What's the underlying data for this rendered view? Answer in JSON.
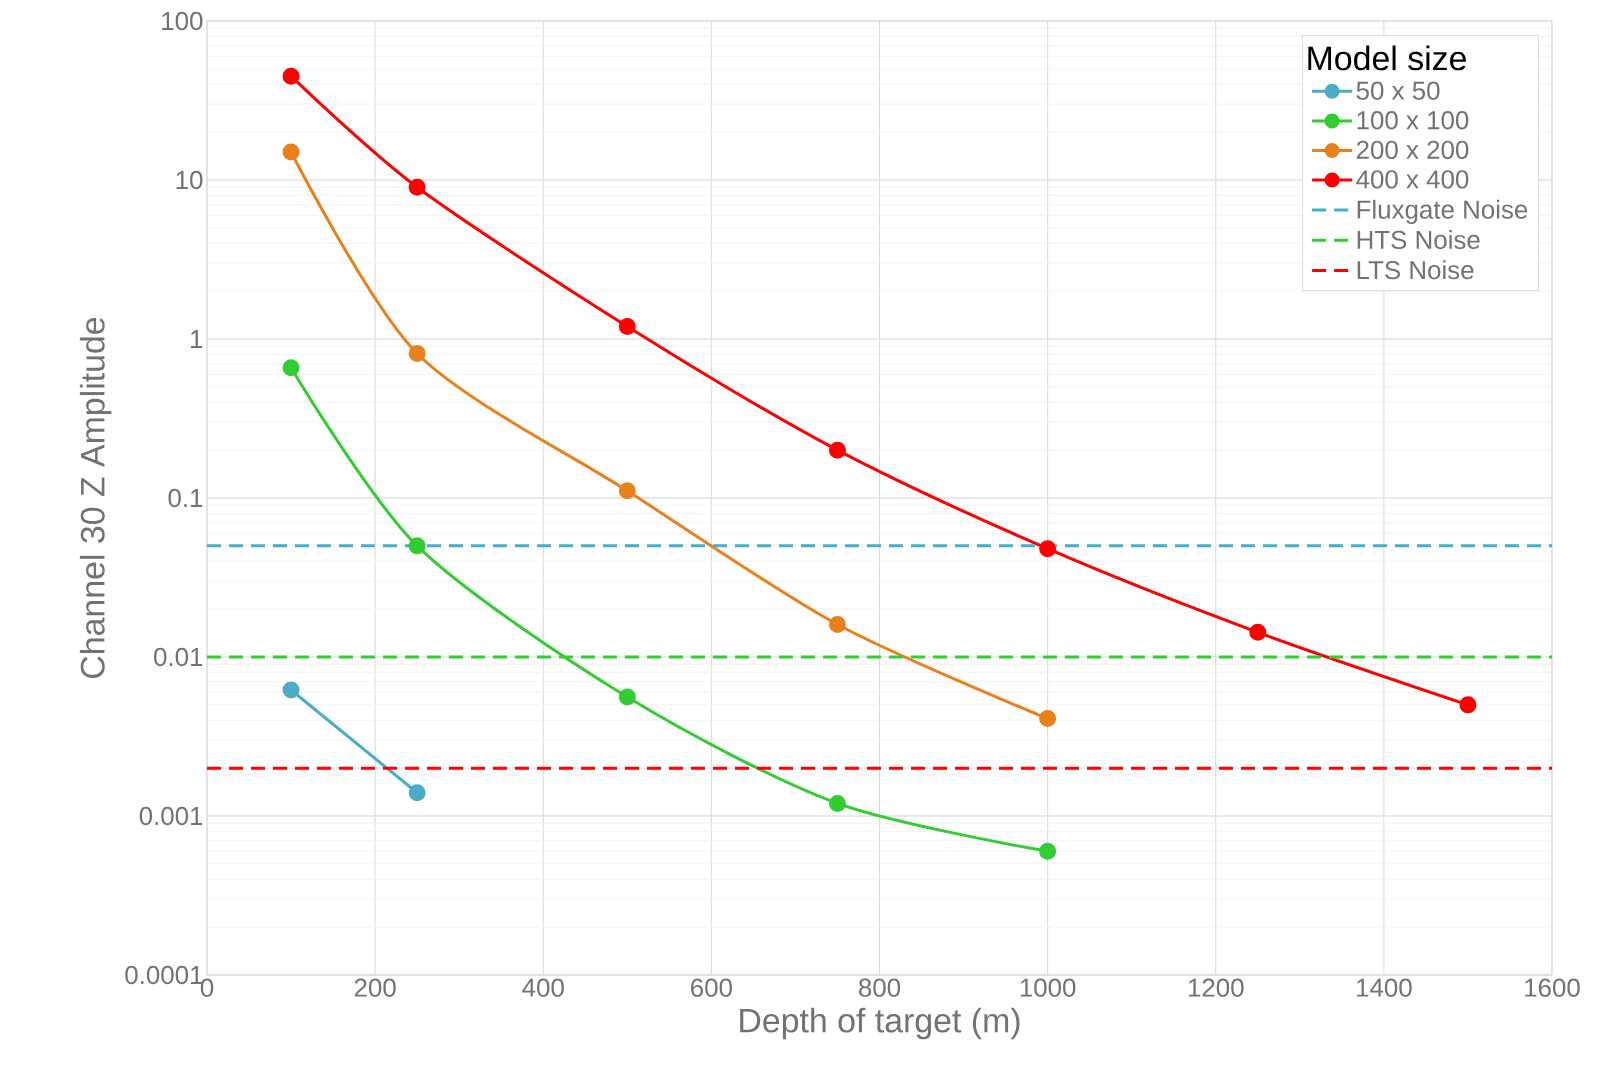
{
  "chart_data": {
    "type": "line",
    "xlabel": "Depth of target (m)",
    "ylabel": "Channel 30 Z Amplitude",
    "legend_title": "Model size",
    "xlim": [
      0,
      1600
    ],
    "xticks": [
      0,
      200,
      400,
      600,
      800,
      1000,
      1200,
      1400,
      1600
    ],
    "ylim": [
      0.0001,
      100
    ],
    "yticks": [
      0.0001,
      0.001,
      0.01,
      0.1,
      1,
      10,
      100
    ],
    "log": "y",
    "grid": true,
    "legend": "top right",
    "marker": "circle",
    "line_style": "solid",
    "series": [
      {
        "name": "50 x 50",
        "color": "#4bacc6",
        "x": [
          100,
          250
        ],
        "values": [
          0.0062,
          0.0014
        ]
      },
      {
        "name": "100 x 100",
        "color": "#33cc33",
        "x": [
          100,
          250,
          500,
          750,
          1000
        ],
        "values": [
          0.66,
          0.05,
          0.0056,
          0.0012,
          0.0006
        ]
      },
      {
        "name": "200 x 200",
        "color": "#e8811c",
        "x": [
          100,
          250,
          500,
          750,
          1000
        ],
        "values": [
          15,
          0.81,
          0.111,
          0.016,
          0.0041
        ]
      },
      {
        "name": "400 x 400",
        "color": "#ff0000",
        "x": [
          100,
          250,
          500,
          750,
          1000,
          1250,
          1500
        ],
        "values": [
          45,
          9,
          1.2,
          0.2,
          0.048,
          0.0143,
          0.005
        ]
      }
    ],
    "ref_lines": [
      {
        "axis": "y",
        "value": 0.05,
        "label": "Fluxgate Noise",
        "color": "#4bacc6",
        "line_style": "dashed"
      },
      {
        "axis": "y",
        "value": 0.01,
        "label": "HTS Noise",
        "color": "#33cc33",
        "line_style": "dashed"
      },
      {
        "axis": "y",
        "value": 0.002,
        "label": "LTS Noise",
        "color": "#ff0000",
        "line_style": "dashed"
      }
    ]
  }
}
